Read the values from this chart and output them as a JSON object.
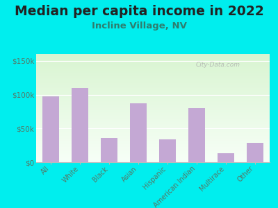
{
  "title": "Median per capita income in 2022",
  "subtitle": "Incline Village, NV",
  "categories": [
    "All",
    "White",
    "Black",
    "Asian",
    "Hispanic",
    "American Indian",
    "Multirace",
    "Other"
  ],
  "values": [
    97000,
    110000,
    36000,
    87000,
    34000,
    80000,
    13000,
    29000
  ],
  "bar_color": "#c4a8d4",
  "background_outer": "#00eeee",
  "title_color": "#222222",
  "subtitle_color": "#2e7d6e",
  "tick_color": "#557766",
  "yticks": [
    0,
    50000,
    100000,
    150000
  ],
  "ytick_labels": [
    "$0",
    "$50k",
    "$100k",
    "$150k"
  ],
  "ylim": [
    0,
    160000
  ],
  "watermark": "City-Data.com",
  "title_fontsize": 13.5,
  "subtitle_fontsize": 9.5
}
